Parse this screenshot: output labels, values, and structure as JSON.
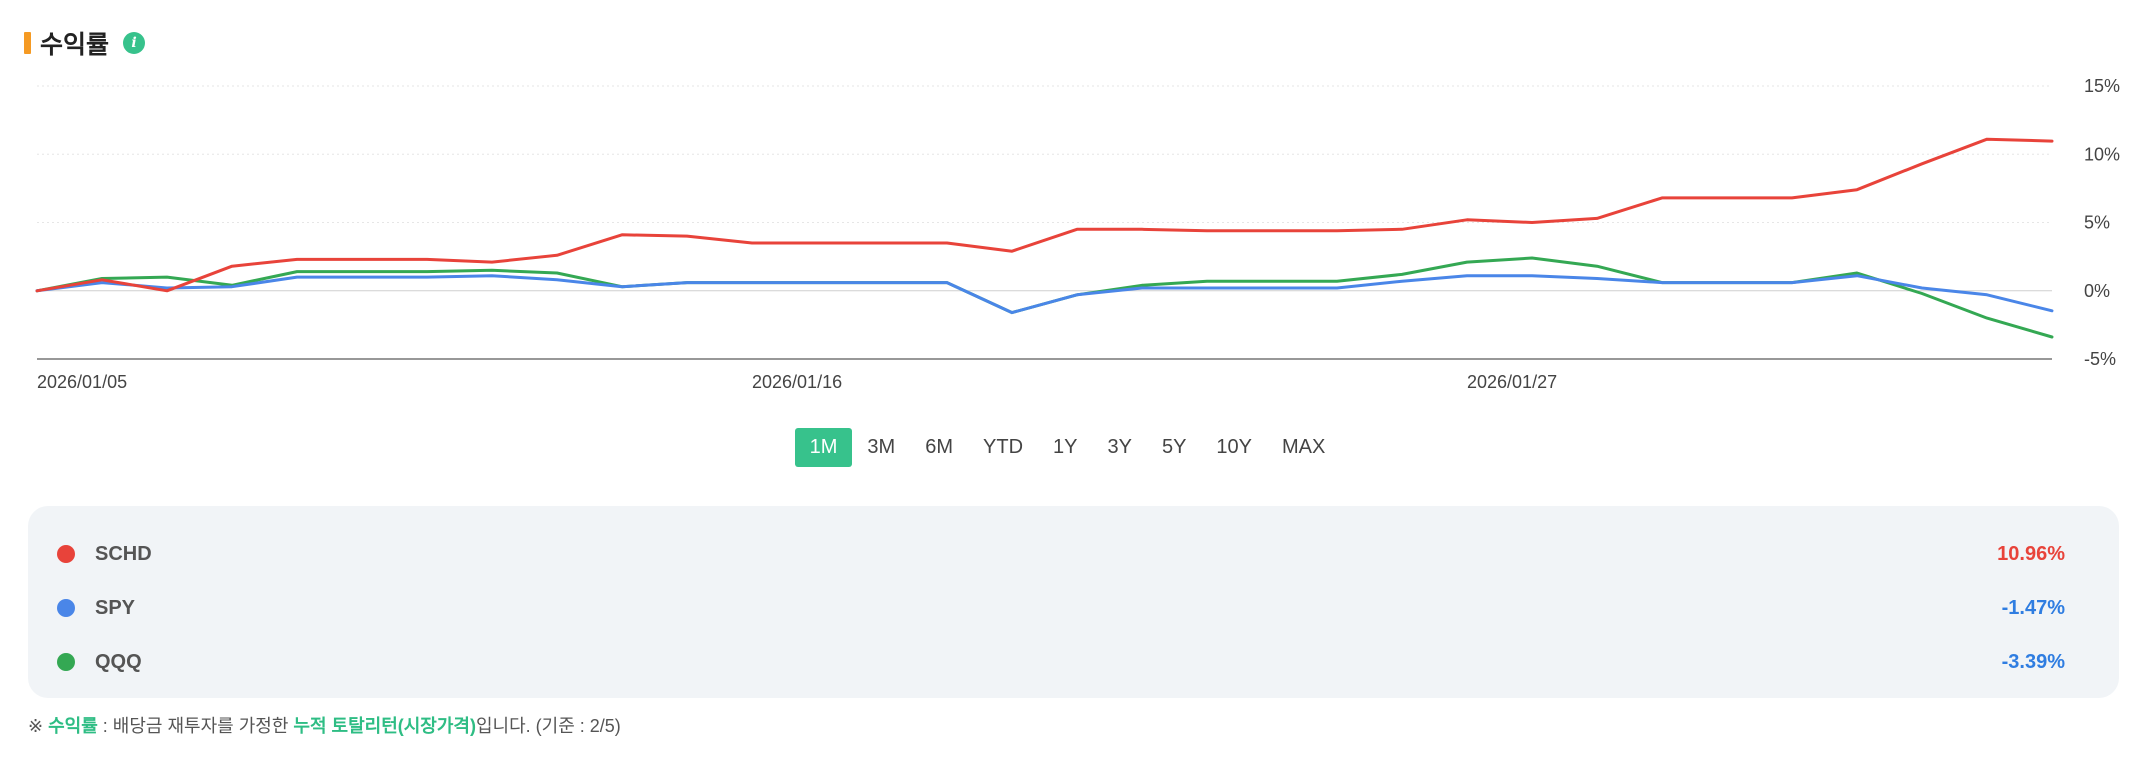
{
  "header": {
    "title": "수익률",
    "info_icon": "i"
  },
  "chart_data": {
    "type": "line",
    "x_tick_labels": [
      "2026/01/05",
      "2026/01/16",
      "2026/01/27"
    ],
    "x_ticks_at_index": [
      0,
      11,
      22
    ],
    "y_tick_labels": [
      "15%",
      "10%",
      "5%",
      "0%",
      "-5%"
    ],
    "ylim": [
      -5,
      15
    ],
    "y_ticks": [
      15,
      10,
      5,
      0,
      -5
    ],
    "grid": true,
    "series": [
      {
        "name": "SCHD",
        "color": "#e8433a",
        "values": [
          0,
          0.8,
          0,
          1.8,
          2.3,
          2.3,
          2.3,
          2.1,
          2.6,
          4.1,
          4.0,
          3.5,
          3.5,
          3.5,
          3.5,
          2.9,
          4.5,
          4.5,
          4.4,
          4.4,
          4.4,
          4.5,
          5.2,
          5.0,
          5.3,
          6.8,
          6.8,
          6.8,
          7.4,
          9.3,
          11.1,
          10.96
        ]
      },
      {
        "name": "SPY",
        "color": "#4a86e8",
        "values": [
          0,
          0.6,
          0.2,
          0.3,
          1.0,
          1.0,
          1.0,
          1.1,
          0.8,
          0.3,
          0.6,
          0.6,
          0.6,
          0.6,
          0.6,
          -1.6,
          -0.3,
          0.2,
          0.2,
          0.2,
          0.2,
          0.7,
          1.1,
          1.1,
          0.9,
          0.6,
          0.6,
          0.6,
          1.1,
          0.2,
          -0.3,
          -1.47
        ]
      },
      {
        "name": "QQQ",
        "color": "#34a853",
        "values": [
          0,
          0.9,
          1.0,
          0.4,
          1.4,
          1.4,
          1.4,
          1.5,
          1.3,
          0.3,
          0.6,
          0.6,
          0.6,
          0.6,
          0.6,
          -1.6,
          -0.3,
          0.4,
          0.7,
          0.7,
          0.7,
          1.2,
          2.1,
          2.4,
          1.8,
          0.6,
          0.6,
          0.6,
          1.3,
          -0.2,
          -2.0,
          -3.39
        ]
      }
    ]
  },
  "periods": {
    "options": [
      "1M",
      "3M",
      "6M",
      "YTD",
      "1Y",
      "3Y",
      "5Y",
      "10Y",
      "MAX"
    ],
    "selected": "1M"
  },
  "legend": [
    {
      "name": "SCHD",
      "value": "10.96%",
      "dot_color": "#e8433a",
      "value_color": "#e8433a"
    },
    {
      "name": "SPY",
      "value": "-1.47%",
      "dot_color": "#4a86e8",
      "value_color": "#2f7de1"
    },
    {
      "name": "QQQ",
      "value": "-3.39%",
      "dot_color": "#34a853",
      "value_color": "#2f7de1"
    }
  ],
  "footnote": {
    "prefix": "※ ",
    "term": "수익률",
    "mid": " : 배당금 재투자를 가정한 ",
    "highlight": "누적 토탈리턴(시장가격)",
    "suffix": "입니다. (기준 : 2/5)"
  }
}
